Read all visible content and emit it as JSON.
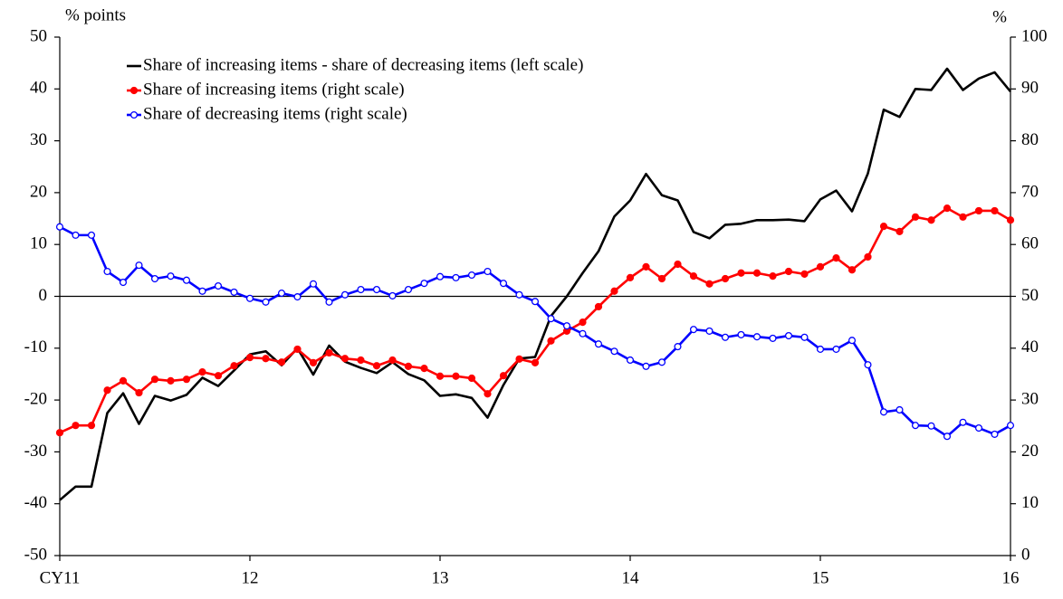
{
  "chart_data": {
    "type": "line",
    "y_label": "% points",
    "y2_label": "%",
    "categories": [
      "CY11",
      null,
      null,
      null,
      null,
      null,
      null,
      null,
      null,
      null,
      null,
      null,
      "12",
      null,
      null,
      null,
      null,
      null,
      null,
      null,
      null,
      null,
      null,
      null,
      "13",
      null,
      null,
      null,
      null,
      null,
      null,
      null,
      null,
      null,
      null,
      null,
      "14",
      null,
      null,
      null,
      null,
      null,
      null,
      null,
      null,
      null,
      null,
      null,
      "15",
      null,
      null,
      null,
      null,
      null,
      null,
      null,
      null,
      null,
      null,
      null,
      "16"
    ],
    "ylim": [
      -50,
      50
    ],
    "yticks": [
      -50,
      -40,
      -30,
      -20,
      -10,
      0,
      10,
      20,
      30,
      40,
      50
    ],
    "y2lim": [
      0,
      100
    ],
    "y2ticks": [
      0,
      10,
      20,
      30,
      40,
      50,
      60,
      70,
      80,
      90,
      100
    ],
    "zero_line": true,
    "legend": "upper left",
    "series": [
      {
        "name": "Share of increasing items - share of decreasing items (left scale)",
        "color": "#000000",
        "axis": "y",
        "marker": "none",
        "values": [
          -39.3,
          -36.7,
          -36.7,
          -22.5,
          -18.7,
          -24.6,
          -19.2,
          -20.1,
          -19.0,
          -15.7,
          -17.3,
          -14.3,
          -11.2,
          -10.6,
          -13.3,
          -10.0,
          -15.1,
          -9.5,
          -12.6,
          -13.8,
          -14.8,
          -12.7,
          -15.0,
          -16.2,
          -19.2,
          -18.9,
          -19.6,
          -23.4,
          -17.1,
          -12.0,
          -11.7,
          -3.8,
          0.0,
          4.5,
          8.7,
          15.4,
          18.5,
          23.6,
          19.5,
          18.5,
          12.4,
          11.2,
          13.8,
          14.0,
          14.7,
          14.7,
          14.8,
          14.5,
          18.7,
          20.4,
          16.4,
          23.7,
          36.0,
          34.6,
          40.0,
          39.8,
          43.9,
          39.8,
          42.0,
          43.2,
          39.5
        ]
      },
      {
        "name": "Share of increasing items (right scale)",
        "color": "#ff0000",
        "axis": "y2",
        "marker": "filled",
        "values": [
          23.7,
          25.1,
          25.1,
          31.9,
          33.7,
          31.4,
          34.0,
          33.7,
          34.0,
          35.4,
          34.7,
          36.6,
          38.2,
          38.0,
          37.3,
          39.8,
          37.2,
          39.1,
          38.0,
          37.7,
          36.6,
          37.7,
          36.5,
          36.1,
          34.6,
          34.6,
          34.2,
          31.2,
          34.7,
          37.9,
          37.2,
          41.4,
          43.3,
          45.0,
          48.0,
          51.0,
          53.6,
          55.7,
          53.4,
          56.2,
          53.9,
          52.4,
          53.4,
          54.5,
          54.5,
          53.9,
          54.8,
          54.3,
          55.7,
          57.4,
          55.1,
          57.6,
          63.5,
          62.5,
          65.3,
          64.7,
          67.0,
          65.3,
          66.5,
          66.5,
          64.7
        ]
      },
      {
        "name": "Share of decreasing items (right scale)",
        "color": "#0000ff",
        "axis": "y2",
        "marker": "open",
        "values": [
          63.4,
          61.8,
          61.8,
          54.8,
          52.7,
          56.0,
          53.4,
          53.9,
          53.1,
          51.0,
          52.0,
          50.8,
          49.6,
          48.9,
          50.6,
          49.9,
          52.4,
          48.9,
          50.3,
          51.3,
          51.3,
          50.1,
          51.3,
          52.5,
          53.8,
          53.6,
          54.1,
          54.8,
          52.5,
          50.3,
          49.0,
          45.7,
          44.3,
          42.8,
          40.8,
          39.4,
          37.7,
          36.5,
          37.3,
          40.3,
          43.6,
          43.3,
          42.1,
          42.6,
          42.2,
          41.9,
          42.4,
          42.1,
          39.8,
          39.8,
          41.5,
          36.8,
          27.7,
          28.1,
          25.1,
          25.0,
          23.0,
          25.7,
          24.6,
          23.4,
          25.1
        ]
      }
    ]
  }
}
